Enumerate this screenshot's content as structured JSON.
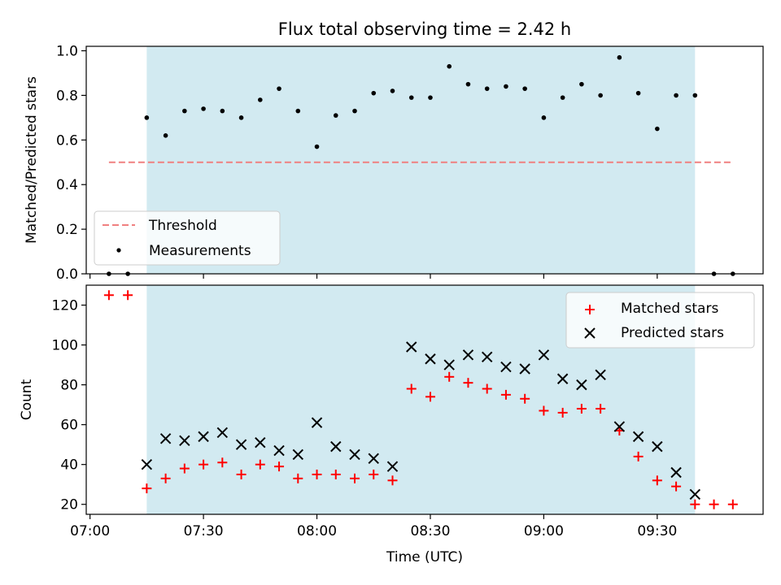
{
  "chart_data": [
    {
      "type": "scatter",
      "title": "Flux total observing time = 2.42 h",
      "xlabel": "",
      "ylabel": "Matched/Predicted stars",
      "xlim": [
        "06:59",
        "09:58"
      ],
      "ylim": [
        0.0,
        1.02
      ],
      "yticks": [
        0.0,
        0.2,
        0.4,
        0.6,
        0.8,
        1.0
      ],
      "ytick_labels": [
        "0.0",
        "0.2",
        "0.4",
        "0.6",
        "0.8",
        "1.0"
      ],
      "shaded_span": [
        "07:15",
        "09:40"
      ],
      "shade_color": "#add8e6",
      "grid": false,
      "legend_position": "lower-left",
      "threshold": {
        "name": "Threshold",
        "y": 0.5,
        "x_start": "07:05",
        "x_end": "09:50",
        "color": "#f08080"
      },
      "series": [
        {
          "name": "Measurements",
          "color": "#000000",
          "marker": "dot",
          "x": [
            "07:05",
            "07:10",
            "07:15",
            "07:20",
            "07:25",
            "07:30",
            "07:35",
            "07:40",
            "07:45",
            "07:50",
            "07:55",
            "08:00",
            "08:05",
            "08:10",
            "08:15",
            "08:20",
            "08:25",
            "08:30",
            "08:35",
            "08:40",
            "08:45",
            "08:50",
            "08:55",
            "09:00",
            "09:05",
            "09:10",
            "09:15",
            "09:20",
            "09:25",
            "09:30",
            "09:35",
            "09:40",
            "09:45",
            "09:50"
          ],
          "y": [
            0.0,
            0.0,
            0.7,
            0.62,
            0.73,
            0.74,
            0.73,
            0.7,
            0.78,
            0.83,
            0.73,
            0.57,
            0.71,
            0.73,
            0.81,
            0.82,
            0.79,
            0.79,
            0.93,
            0.85,
            0.83,
            0.84,
            0.83,
            0.7,
            0.79,
            0.85,
            0.8,
            0.97,
            0.81,
            0.65,
            0.8,
            0.8,
            0.0,
            0.0
          ]
        }
      ]
    },
    {
      "type": "scatter",
      "title": "",
      "xlabel": "Time (UTC)",
      "ylabel": "Count",
      "xlim": [
        "06:59",
        "09:58"
      ],
      "ylim": [
        15,
        130
      ],
      "yticks": [
        20,
        40,
        60,
        80,
        100,
        120
      ],
      "ytick_labels": [
        "20",
        "40",
        "60",
        "80",
        "100",
        "120"
      ],
      "xticks": [
        "07:00",
        "07:30",
        "08:00",
        "08:30",
        "09:00",
        "09:30"
      ],
      "xtick_labels": [
        "07:00",
        "07:30",
        "08:00",
        "08:30",
        "09:00",
        "09:30"
      ],
      "shaded_span": [
        "07:15",
        "09:40"
      ],
      "shade_color": "#add8e6",
      "grid": false,
      "legend_position": "top-right",
      "series": [
        {
          "name": "Matched stars",
          "color": "#ff0000",
          "marker": "plus",
          "x": [
            "07:05",
            "07:10",
            "07:15",
            "07:20",
            "07:25",
            "07:30",
            "07:35",
            "07:40",
            "07:45",
            "07:50",
            "07:55",
            "08:00",
            "08:05",
            "08:10",
            "08:15",
            "08:20",
            "08:25",
            "08:30",
            "08:35",
            "08:40",
            "08:45",
            "08:50",
            "08:55",
            "09:00",
            "09:05",
            "09:10",
            "09:15",
            "09:20",
            "09:25",
            "09:30",
            "09:35",
            "09:40",
            "09:45",
            "09:50"
          ],
          "y": [
            125,
            125,
            28,
            33,
            38,
            40,
            41,
            35,
            40,
            39,
            33,
            35,
            35,
            33,
            35,
            32,
            78,
            74,
            84,
            81,
            78,
            75,
            73,
            67,
            66,
            68,
            68,
            57,
            44,
            32,
            29,
            20,
            20,
            20
          ]
        },
        {
          "name": "Predicted stars",
          "color": "#000000",
          "marker": "x",
          "x": [
            "07:15",
            "07:20",
            "07:25",
            "07:30",
            "07:35",
            "07:40",
            "07:45",
            "07:50",
            "07:55",
            "08:00",
            "08:05",
            "08:10",
            "08:15",
            "08:20",
            "08:25",
            "08:30",
            "08:35",
            "08:40",
            "08:45",
            "08:50",
            "08:55",
            "09:00",
            "09:05",
            "09:10",
            "09:15",
            "09:20",
            "09:25",
            "09:30",
            "09:35",
            "09:40"
          ],
          "y": [
            40,
            53,
            52,
            54,
            56,
            50,
            51,
            47,
            45,
            61,
            49,
            45,
            43,
            39,
            99,
            93,
            90,
            95,
            94,
            89,
            88,
            95,
            83,
            80,
            85,
            59,
            54,
            49,
            36,
            25
          ]
        }
      ]
    }
  ]
}
